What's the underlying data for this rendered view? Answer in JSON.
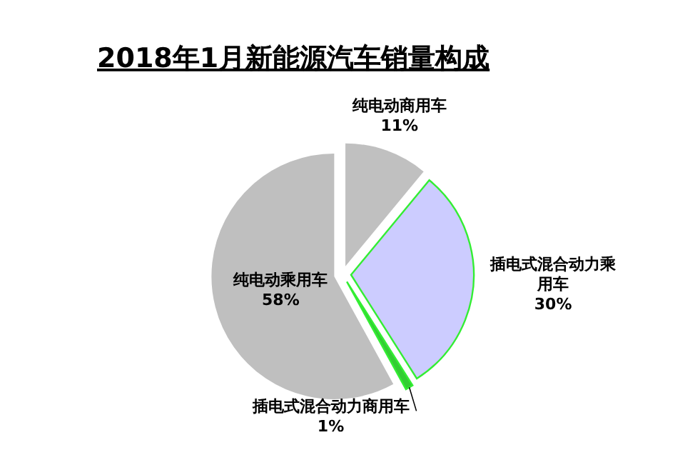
{
  "chart_data": {
    "type": "pie",
    "title": "2018年1月新能源汽车销量构成",
    "categories": [
      "纯电动商用车",
      "插电式混合动力乘用车",
      "插电式混合动力商用车",
      "纯电动乘用车"
    ],
    "values": [
      11,
      30,
      1,
      58
    ],
    "colors": [
      "#c0c0c0",
      "#ccccff",
      "#33cc33",
      "#bfbfbf"
    ],
    "value_labels": [
      "11%",
      "30%",
      "1%",
      "58%"
    ]
  }
}
